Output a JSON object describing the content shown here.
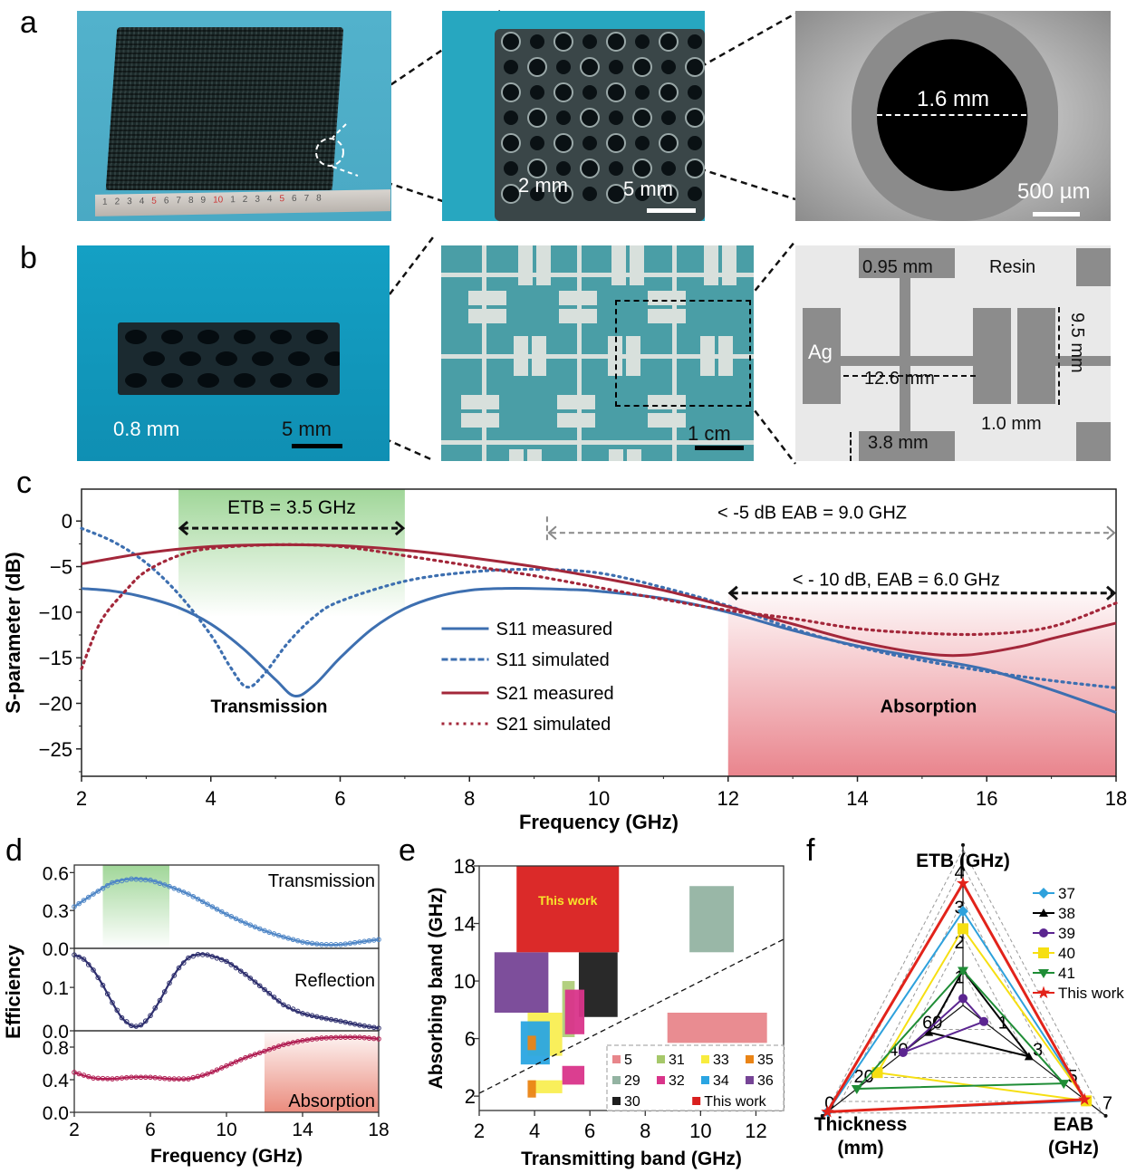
{
  "figure": {
    "panel_labels": [
      "a",
      "b",
      "c",
      "d",
      "e",
      "f"
    ]
  },
  "panel_a": {
    "photo1": {
      "description": "large 3D printed honeycomb absorber on ruler",
      "ruler_numbers": [
        "1",
        "2",
        "3",
        "4",
        "5",
        "6",
        "7",
        "8",
        "9",
        "10",
        "1",
        "2",
        "3",
        "4",
        "5",
        "6",
        "7",
        "8"
      ]
    },
    "photo2": {
      "hole_spacing_label": "2 mm",
      "scale_bar_label": "5 mm"
    },
    "photo3": {
      "diameter_label": "1.6 mm",
      "scale_bar_label": "500 µm"
    }
  },
  "panel_b": {
    "photo1": {
      "thickness_label": "0.8 mm",
      "scale_bar_label": "5 mm"
    },
    "photo2": {
      "scale_bar_label": "1 cm"
    },
    "schematic": {
      "labels": {
        "line_width": "0.95 mm",
        "material_top": "Resin",
        "material_pad": "Ag",
        "arm_length": "12.6 mm",
        "pad_height": "9.5 mm",
        "gap": "1.0 mm",
        "pad_width": "3.8 mm"
      }
    }
  },
  "chart_data": [
    {
      "id": "c",
      "type": "line",
      "title": "",
      "xlabel": "Frequency (GHz)",
      "ylabel": "S-parameter (dB)",
      "xlim": [
        2,
        18
      ],
      "ylim": [
        -28,
        3.5
      ],
      "xticks": [
        2,
        4,
        6,
        8,
        10,
        12,
        14,
        16,
        18
      ],
      "yticks": [
        0,
        -5,
        -10,
        -15,
        -20,
        -25
      ],
      "legend_position": "center",
      "series": [
        {
          "name": "S11 measured",
          "color": "#3d6fb0",
          "style": "solid",
          "x": [
            2,
            2.5,
            3,
            3.5,
            4,
            4.5,
            5,
            5.3,
            5.6,
            6,
            6.5,
            7,
            7.5,
            8,
            8.5,
            9,
            9.5,
            10,
            11,
            12,
            13,
            14,
            15,
            16,
            17,
            18
          ],
          "y": [
            -7.4,
            -7.7,
            -8.4,
            -9.5,
            -11.3,
            -14.0,
            -17.4,
            -19.2,
            -18.0,
            -15.0,
            -11.8,
            -9.6,
            -8.3,
            -7.6,
            -7.4,
            -7.4,
            -7.5,
            -7.7,
            -8.5,
            -10.0,
            -12.0,
            -13.7,
            -15.0,
            -16.3,
            -18.5,
            -21.0
          ]
        },
        {
          "name": "S11 simulated",
          "color": "#3d6fb0",
          "style": "dotted",
          "x": [
            2,
            2.5,
            3,
            3.5,
            4,
            4.3,
            4.55,
            4.8,
            5.2,
            5.6,
            6,
            7,
            8,
            9,
            10,
            11,
            12,
            13,
            14,
            15,
            16,
            17,
            18
          ],
          "y": [
            -0.8,
            -2.3,
            -4.6,
            -8.0,
            -12.5,
            -16.0,
            -18.2,
            -17.0,
            -13.3,
            -10.5,
            -8.8,
            -6.6,
            -5.6,
            -5.3,
            -5.7,
            -7.3,
            -9.3,
            -11.8,
            -13.8,
            -15.3,
            -16.5,
            -17.5,
            -18.3
          ]
        },
        {
          "name": "S21 measured",
          "color": "#a3273a",
          "style": "solid",
          "x": [
            2,
            3,
            4,
            5,
            6,
            7,
            8,
            9,
            10,
            11,
            12,
            13,
            14,
            15,
            15.7,
            16.5,
            17,
            18
          ],
          "y": [
            -4.7,
            -3.5,
            -2.8,
            -2.6,
            -2.7,
            -3.2,
            -4.0,
            -5.0,
            -6.2,
            -7.6,
            -9.4,
            -11.3,
            -13.2,
            -14.5,
            -14.7,
            -13.8,
            -12.9,
            -11.2
          ]
        },
        {
          "name": "S21 simulated",
          "color": "#a3273a",
          "style": "dotted",
          "x": [
            2,
            2.3,
            2.7,
            3,
            3.5,
            4,
            5,
            6,
            7,
            8,
            9,
            10,
            11,
            12,
            13,
            14,
            15,
            16,
            17,
            18
          ],
          "y": [
            -16.2,
            -11.0,
            -7.5,
            -5.5,
            -3.8,
            -3.0,
            -2.6,
            -2.8,
            -3.8,
            -4.9,
            -6.0,
            -7.3,
            -8.6,
            -9.8,
            -10.7,
            -11.8,
            -12.3,
            -12.4,
            -11.6,
            -9.0
          ]
        }
      ],
      "regions": [
        {
          "label": "Transmission",
          "x_range": [
            3.5,
            7.0
          ],
          "color": "#8fcf86"
        },
        {
          "label": "Absorption",
          "x_range": [
            12.0,
            18.0
          ],
          "color": "#e87e87"
        }
      ],
      "annotations": [
        {
          "text": "ETB = 3.5 GHz",
          "x_range": [
            3.5,
            7.0
          ]
        },
        {
          "text": "< -5 dB EAB = 9.0 GHZ",
          "x_range": [
            9.0,
            18.0
          ]
        },
        {
          "text": "< - 10 dB, EAB = 6.0 GHz",
          "x_range": [
            12.0,
            18.0
          ]
        },
        {
          "text": "Transmission"
        },
        {
          "text": "Absorption"
        }
      ]
    },
    {
      "id": "d",
      "type": "line",
      "xlabel": "Frequency (GHz)",
      "ylabel": "Efficiency",
      "xlim": [
        2,
        18
      ],
      "xticks": [
        2,
        6,
        10,
        14,
        18
      ],
      "subplots": [
        {
          "name": "Transmission",
          "color": "#4f86c6",
          "ylim": [
            0,
            0.66
          ],
          "yticks": [
            0.0,
            0.3,
            0.6
          ],
          "x": [
            2,
            3,
            4,
            5,
            6,
            7,
            8,
            9,
            10,
            11,
            12,
            13,
            14,
            15,
            16,
            17,
            18
          ],
          "y": [
            0.33,
            0.43,
            0.52,
            0.55,
            0.54,
            0.49,
            0.43,
            0.35,
            0.27,
            0.2,
            0.14,
            0.09,
            0.05,
            0.03,
            0.03,
            0.05,
            0.07
          ],
          "shade_x_range": [
            3.5,
            7.0
          ],
          "shade_color": "#8fcf86"
        },
        {
          "name": "Reflection",
          "color": "#2e2f6e",
          "ylim": [
            0,
            0.19
          ],
          "yticks": [
            0.0,
            0.1
          ],
          "x": [
            2,
            2.5,
            3,
            3.5,
            4,
            4.5,
            5,
            5.3,
            5.6,
            6,
            6.5,
            7,
            7.5,
            8,
            8.5,
            9,
            10,
            11,
            12,
            13,
            14,
            15,
            16,
            17,
            18
          ],
          "y": [
            0.175,
            0.165,
            0.14,
            0.105,
            0.065,
            0.03,
            0.012,
            0.01,
            0.015,
            0.035,
            0.07,
            0.11,
            0.145,
            0.168,
            0.176,
            0.175,
            0.16,
            0.13,
            0.095,
            0.06,
            0.04,
            0.03,
            0.022,
            0.013,
            0.006
          ]
        },
        {
          "name": "Absorption",
          "color": "#b01d52",
          "ylim": [
            0,
            1.0
          ],
          "yticks": [
            0.0,
            0.4,
            0.8
          ],
          "x": [
            2,
            3,
            4,
            5,
            6,
            7,
            8,
            9,
            10,
            11,
            12,
            13,
            14,
            15,
            16,
            17,
            18
          ],
          "y": [
            0.49,
            0.42,
            0.41,
            0.43,
            0.43,
            0.41,
            0.41,
            0.47,
            0.57,
            0.67,
            0.75,
            0.83,
            0.88,
            0.91,
            0.92,
            0.92,
            0.9
          ],
          "shade_x_range": [
            12.0,
            18.0
          ],
          "shade_color": "#e87e6e"
        }
      ]
    },
    {
      "id": "e",
      "type": "bar",
      "subtype": "band-rectangles",
      "xlabel": "Transmitting band (GHz)",
      "ylabel": "Absorbing band (GHz)",
      "xlim": [
        2,
        13
      ],
      "ylim": [
        1,
        18
      ],
      "xticks": [
        2,
        4,
        6,
        8,
        10,
        12
      ],
      "yticks": [
        2,
        6,
        10,
        14,
        18
      ],
      "diagonal_line": {
        "from": [
          2,
          2.2
        ],
        "to": [
          13,
          12.9
        ],
        "style": "dashed"
      },
      "legend_position": "bottom-right",
      "series": [
        {
          "name": "5",
          "color": "#e8868b",
          "rects": [
            [
              8.8,
              12.4,
              5.7,
              7.8
            ]
          ]
        },
        {
          "name": "29",
          "color": "#93b3a2",
          "rects": [
            [
              9.6,
              11.2,
              12.0,
              16.6
            ]
          ]
        },
        {
          "name": "30",
          "color": "#1e1e1e",
          "rects": [
            [
              5.6,
              7.0,
              7.5,
              12.0
            ]
          ]
        },
        {
          "name": "31",
          "color": "#a6c86a",
          "rects": [
            [
              5.0,
              5.45,
              6.1,
              10.0
            ]
          ]
        },
        {
          "name": "32",
          "color": "#d9348a",
          "rects": [
            [
              5.1,
              5.8,
              6.3,
              9.4
            ],
            [
              5.0,
              5.8,
              2.8,
              4.1
            ]
          ]
        },
        {
          "name": "33",
          "color": "#f8ec3e",
          "rects": [
            [
              3.75,
              5.0,
              4.8,
              7.8
            ],
            [
              3.8,
              5.0,
              2.2,
              3.1
            ]
          ]
        },
        {
          "name": "34",
          "color": "#2aa5e2",
          "rects": [
            [
              3.5,
              4.55,
              4.2,
              7.2
            ]
          ]
        },
        {
          "name": "35",
          "color": "#ea8416",
          "rects": [
            [
              3.75,
              4.05,
              5.2,
              6.2
            ],
            [
              3.75,
              4.05,
              1.9,
              3.1
            ]
          ]
        },
        {
          "name": "36",
          "color": "#764496",
          "rects": [
            [
              2.55,
              4.5,
              7.8,
              12.0
            ]
          ]
        },
        {
          "name": "This work",
          "color": "#d91f1e",
          "rects": [
            [
              3.35,
              7.05,
              12.0,
              18.0
            ]
          ],
          "label": "This work",
          "label_color": "#f7e52a"
        }
      ]
    },
    {
      "id": "f",
      "type": "radar",
      "axes": [
        {
          "name": "ETB (GHz)",
          "ticks": [
            "1",
            "2",
            "3",
            "4"
          ],
          "range": [
            0,
            4
          ]
        },
        {
          "name": "EAB (GHz)",
          "ticks": [
            "1",
            "3",
            "5",
            "7"
          ],
          "range": [
            -1,
            7
          ]
        },
        {
          "name": "Thickness (mm)",
          "ticks": [
            "60",
            "40",
            "20",
            "0"
          ],
          "range": [
            80,
            0
          ]
        }
      ],
      "legend_position": "top-right",
      "series": [
        {
          "name": "37",
          "color": "#2ea1dc",
          "marker": "diamond",
          "values": {
            "ETB": 2.7,
            "EAB": 6.1,
            "Thickness": 1.0
          }
        },
        {
          "name": "38",
          "color": "#000000",
          "marker": "triangle-up",
          "values": {
            "ETB": 1.0,
            "EAB": 2.8,
            "Thickness": 60.0
          }
        },
        {
          "name": "39",
          "color": "#5b2590",
          "marker": "circle",
          "values": {
            "ETB": 0.2,
            "EAB": 0.2,
            "Thickness": 45.0
          }
        },
        {
          "name": "40",
          "color": "#f6df12",
          "marker": "square",
          "values": {
            "ETB": 2.2,
            "EAB": 6.1,
            "Thickness": 30.0
          }
        },
        {
          "name": "41",
          "color": "#1f8d36",
          "marker": "triangle-down",
          "values": {
            "ETB": 1.0,
            "EAB": 4.8,
            "Thickness": 18.0
          }
        },
        {
          "name": "This work",
          "color": "#e2231a",
          "marker": "star",
          "values": {
            "ETB": 3.5,
            "EAB": 6.0,
            "Thickness": 0.8
          }
        }
      ]
    }
  ]
}
